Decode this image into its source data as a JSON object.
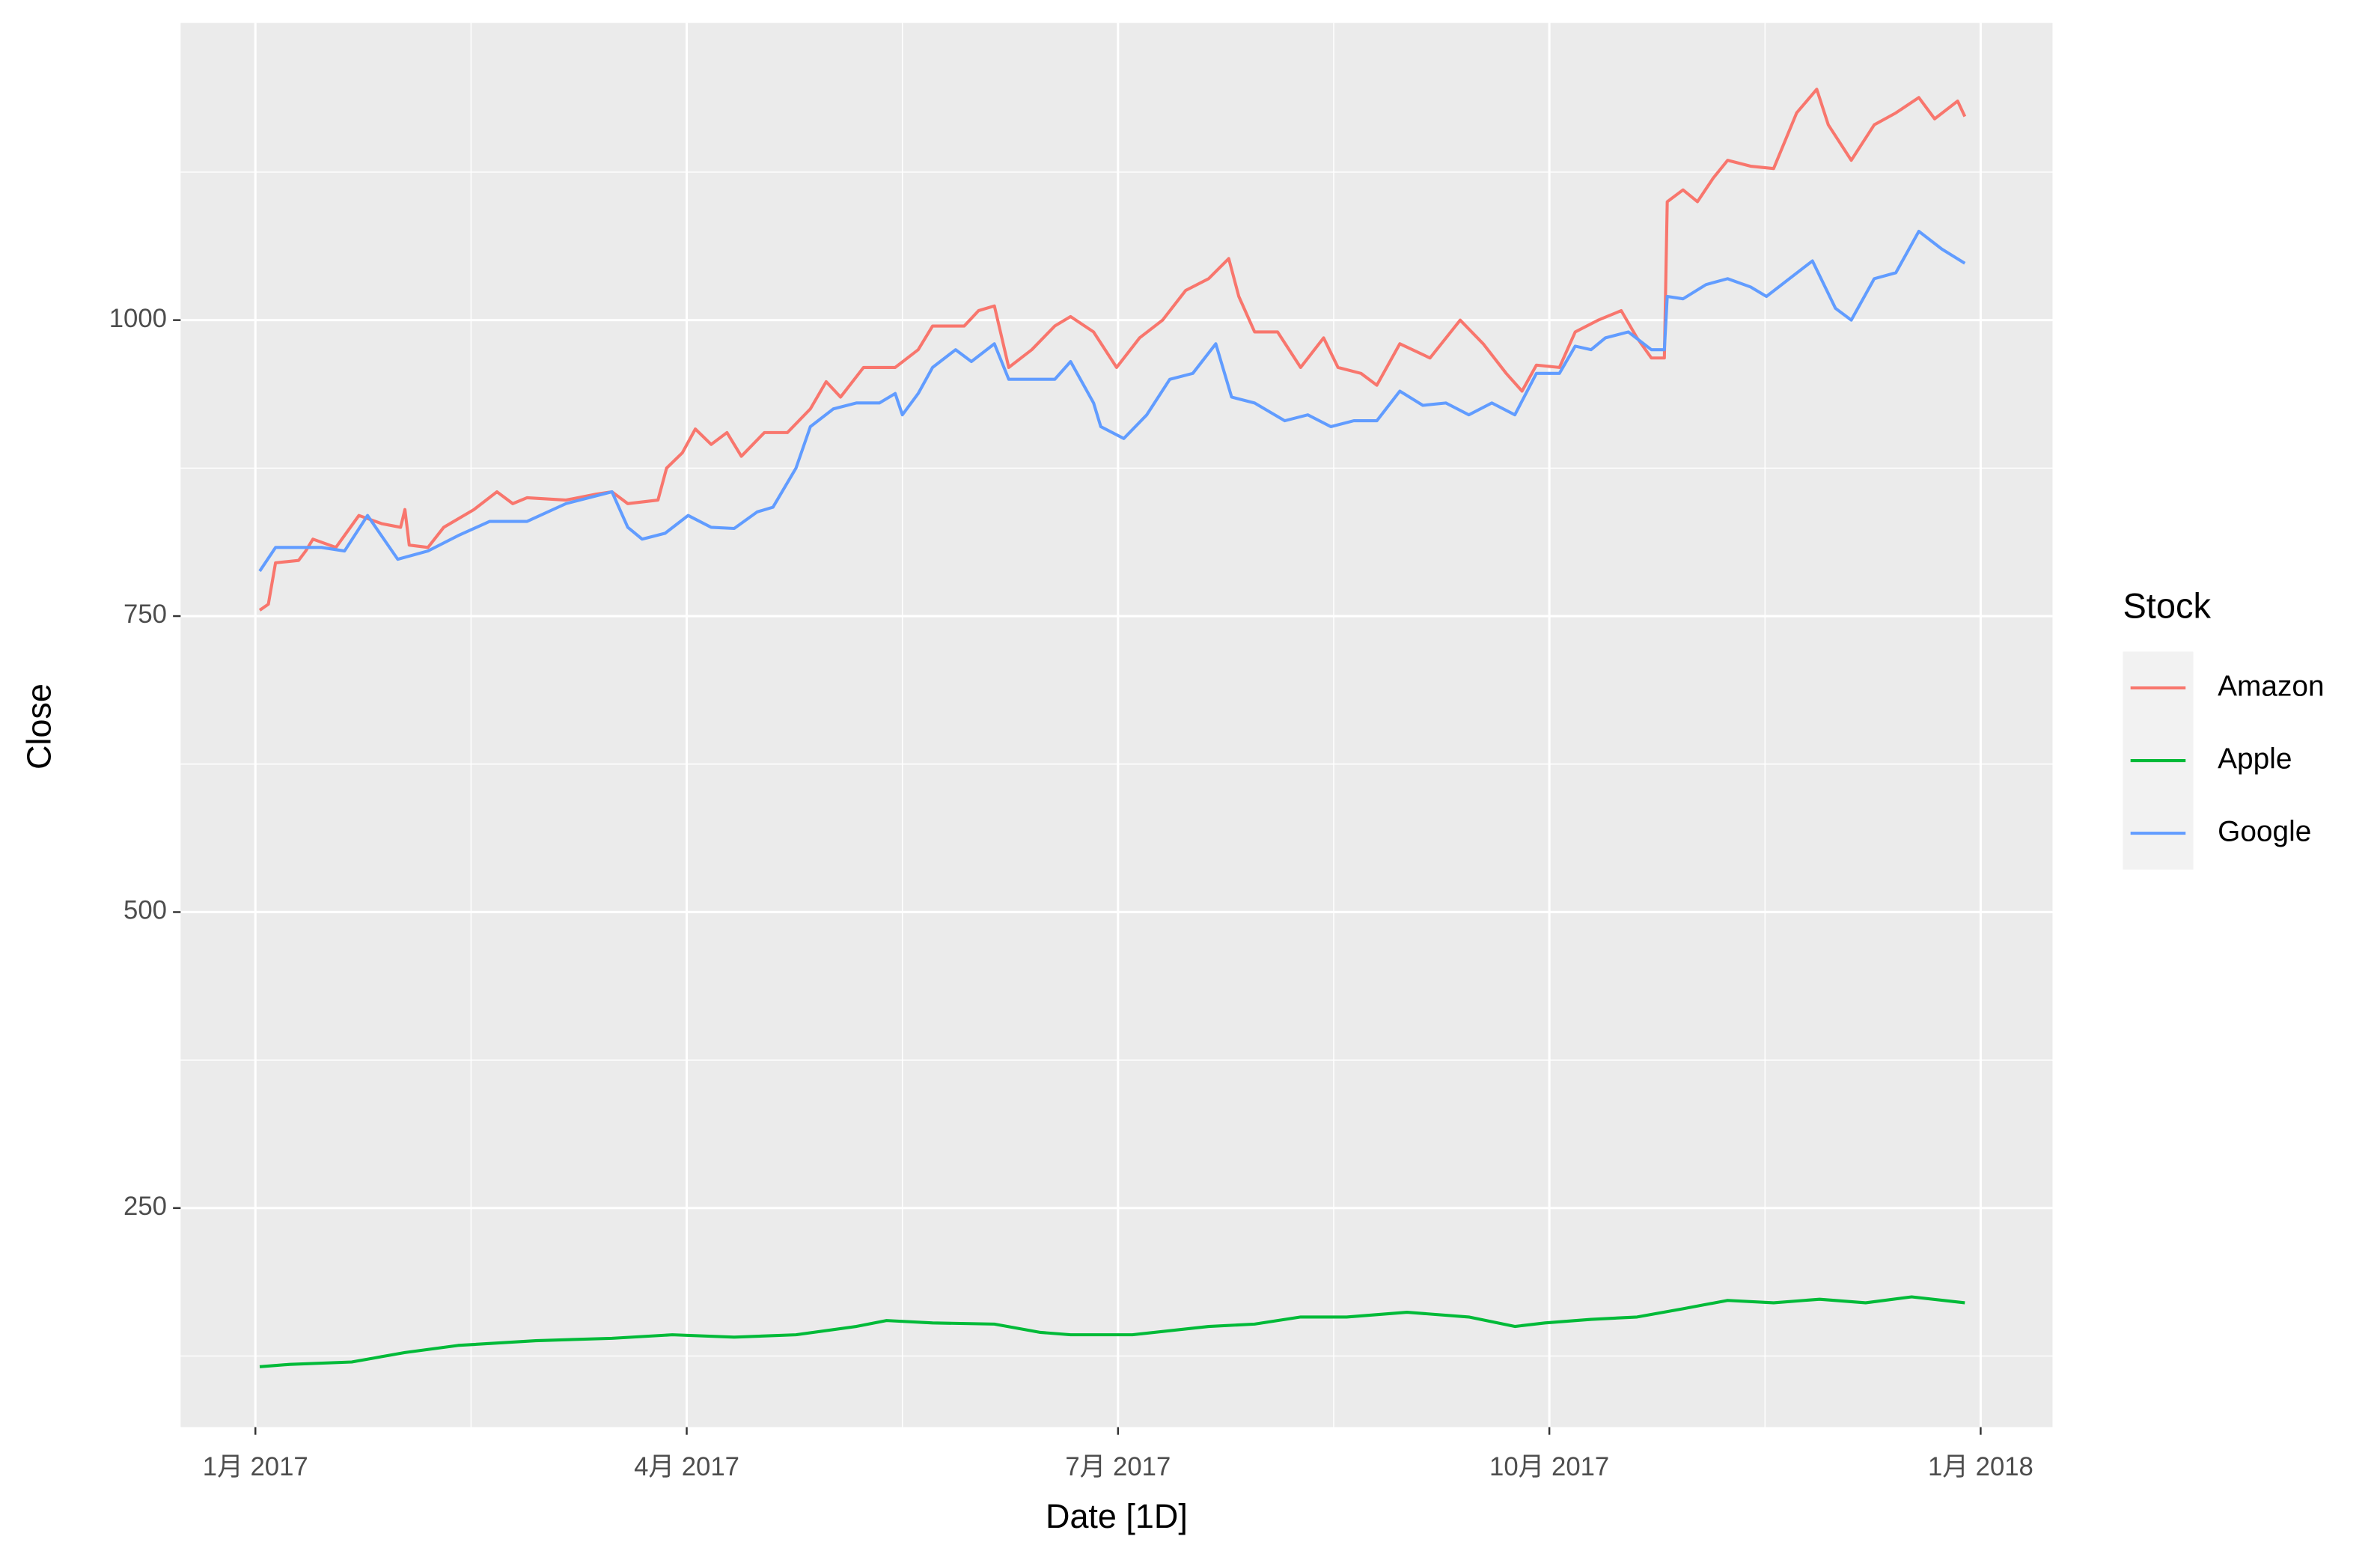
{
  "chart_data": {
    "type": "line",
    "x_label": "Date [1D]",
    "y_label": "Close",
    "legend_title": "Stock",
    "legend_position": "right",
    "grid": true,
    "xlim": [
      -0.52,
      12.5
    ],
    "xticks": [
      {
        "value": 0,
        "label": "1月 2017"
      },
      {
        "value": 3,
        "label": "4月 2017"
      },
      {
        "value": 6,
        "label": "7月 2017"
      },
      {
        "value": 9,
        "label": "10月 2017"
      },
      {
        "value": 12,
        "label": "1月 2018"
      }
    ],
    "ylim": [
      65,
      1251
    ],
    "yticks": [
      250,
      500,
      750,
      1000
    ],
    "series": [
      {
        "name": "Amazon",
        "color": "#F8766D",
        "x": [
          0.03,
          0.09,
          0.14,
          0.3,
          0.35,
          0.4,
          0.56,
          0.72,
          0.88,
          1.01,
          1.04,
          1.07,
          1.2,
          1.31,
          1.52,
          1.68,
          1.79,
          1.89,
          2.16,
          2.37,
          2.48,
          2.59,
          2.8,
          2.86,
          2.97,
          3.06,
          3.17,
          3.28,
          3.38,
          3.54,
          3.7,
          3.86,
          3.97,
          4.07,
          4.23,
          4.45,
          4.61,
          4.71,
          4.93,
          5.03,
          5.14,
          5.24,
          5.4,
          5.56,
          5.67,
          5.83,
          5.99,
          6.15,
          6.31,
          6.47,
          6.63,
          6.77,
          6.84,
          6.95,
          7.11,
          7.27,
          7.43,
          7.53,
          7.69,
          7.8,
          7.96,
          8.17,
          8.38,
          8.54,
          8.7,
          8.81,
          8.91,
          9.07,
          9.18,
          9.34,
          9.5,
          9.61,
          9.71,
          9.8,
          9.82,
          9.93,
          10.03,
          10.14,
          10.24,
          10.4,
          10.56,
          10.72,
          10.86,
          10.94,
          11.1,
          11.26,
          11.41,
          11.57,
          11.68,
          11.84,
          11.89
        ],
        "values": [
          755,
          760,
          795,
          797,
          805,
          815,
          808,
          835,
          828,
          825,
          840,
          810,
          808,
          825,
          840,
          855,
          845,
          850,
          848,
          853,
          855,
          845,
          848,
          875,
          888,
          908,
          895,
          905,
          885,
          905,
          905,
          925,
          948,
          935,
          960,
          960,
          975,
          995,
          995,
          1008,
          1012,
          960,
          975,
          995,
          1003,
          990,
          960,
          985,
          1000,
          1025,
          1035,
          1052,
          1020,
          990,
          990,
          960,
          985,
          960,
          955,
          945,
          980,
          968,
          1000,
          980,
          955,
          940,
          962,
          960,
          990,
          1000,
          1008,
          985,
          968,
          968,
          1100,
          1110,
          1100,
          1120,
          1135,
          1130,
          1128,
          1175,
          1195,
          1165,
          1135,
          1165,
          1175,
          1188,
          1170,
          1185,
          1172
        ]
      },
      {
        "name": "Apple",
        "color": "#00BA38",
        "x": [
          0.03,
          0.24,
          0.67,
          1.04,
          1.41,
          1.95,
          2.48,
          2.9,
          3.33,
          3.76,
          4.18,
          4.39,
          4.71,
          5.14,
          5.46,
          5.67,
          6.1,
          6.63,
          6.95,
          7.27,
          7.59,
          8.01,
          8.44,
          8.76,
          8.97,
          9.29,
          9.61,
          9.93,
          10.24,
          10.56,
          10.88,
          11.2,
          11.52,
          11.89
        ],
        "values": [
          116,
          118,
          120,
          128,
          134,
          138,
          140,
          143,
          141,
          143,
          150,
          155,
          153,
          152,
          145,
          143,
          143,
          150,
          152,
          158,
          158,
          162,
          158,
          150,
          153,
          156,
          158,
          165,
          172,
          170,
          173,
          170,
          175,
          170
        ]
      },
      {
        "name": "Google",
        "color": "#619CFF",
        "x": [
          0.03,
          0.14,
          0.3,
          0.46,
          0.62,
          0.78,
          0.99,
          1.2,
          1.41,
          1.63,
          1.89,
          2.16,
          2.48,
          2.59,
          2.69,
          2.85,
          3.01,
          3.17,
          3.33,
          3.49,
          3.6,
          3.76,
          3.86,
          4.02,
          4.18,
          4.34,
          4.45,
          4.5,
          4.61,
          4.71,
          4.87,
          4.98,
          5.14,
          5.24,
          5.4,
          5.56,
          5.67,
          5.83,
          5.88,
          6.04,
          6.2,
          6.36,
          6.52,
          6.68,
          6.79,
          6.95,
          7.16,
          7.32,
          7.48,
          7.64,
          7.8,
          7.96,
          8.12,
          8.28,
          8.44,
          8.6,
          8.76,
          8.91,
          9.07,
          9.18,
          9.29,
          9.39,
          9.55,
          9.71,
          9.8,
          9.82,
          9.93,
          10.09,
          10.24,
          10.4,
          10.51,
          10.67,
          10.83,
          10.99,
          11.1,
          11.26,
          11.41,
          11.57,
          11.73,
          11.89
        ],
        "values": [
          788,
          808,
          808,
          808,
          805,
          835,
          798,
          805,
          818,
          830,
          830,
          845,
          855,
          825,
          815,
          820,
          835,
          825,
          824,
          838,
          842,
          875,
          910,
          925,
          930,
          930,
          938,
          920,
          938,
          960,
          975,
          965,
          980,
          950,
          950,
          950,
          965,
          930,
          910,
          900,
          920,
          950,
          955,
          980,
          935,
          930,
          915,
          920,
          910,
          915,
          915,
          940,
          928,
          930,
          920,
          930,
          920,
          955,
          955,
          978,
          975,
          985,
          990,
          975,
          975,
          1020,
          1018,
          1030,
          1035,
          1028,
          1020,
          1035,
          1050,
          1010,
          1000,
          1035,
          1040,
          1075,
          1060,
          1048
        ]
      }
    ]
  }
}
